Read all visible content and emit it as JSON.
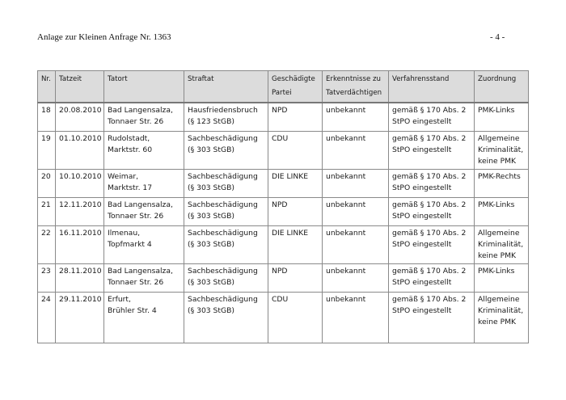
{
  "header": {
    "title": "Anlage zur Kleinen Anfrage Nr. 1363",
    "page": "- 4 -"
  },
  "table": {
    "columns": [
      "Nr.",
      "Tatzeit",
      "Tatort",
      "Straftat",
      "Geschädigte\nPartei",
      "Erkenntnisse zu\nTatverdächtigen",
      "Verfahrensstand",
      "Zuordnung"
    ],
    "rows": [
      [
        "18",
        "20.08.2010",
        "Bad Langensalza,\nTonnaer Str. 26",
        "Hausfriedensbruch\n(§ 123 StGB)",
        "NPD",
        "unbekannt",
        "gemäß § 170 Abs. 2\nStPO eingestellt",
        "PMK-Links"
      ],
      [
        "19",
        "01.10.2010",
        "Rudolstadt,\nMarktstr. 60",
        "Sachbeschädigung\n(§ 303 StGB)",
        "CDU",
        "unbekannt",
        "gemäß § 170 Abs. 2\nStPO eingestellt",
        "Allgemeine\nKriminalität,\nkeine PMK"
      ],
      [
        "20",
        "10.10.2010",
        "Weimar,\nMarktstr. 17",
        "Sachbeschädigung\n(§ 303 StGB)",
        "DIE LINKE",
        "unbekannt",
        "gemäß § 170 Abs. 2\nStPO eingestellt",
        "PMK-Rechts"
      ],
      [
        "21",
        "12.11.2010",
        "Bad Langensalza,\nTonnaer Str. 26",
        "Sachbeschädigung\n(§ 303 StGB)",
        "NPD",
        "unbekannt",
        "gemäß § 170 Abs. 2\nStPO eingestellt",
        "PMK-Links"
      ],
      [
        "22",
        "16.11.2010",
        "Ilmenau,\nTopfmarkt 4",
        "Sachbeschädigung\n(§ 303 StGB)",
        "DIE LINKE",
        "unbekannt",
        "gemäß § 170 Abs. 2\nStPO eingestellt",
        "Allgemeine\nKriminalität,\nkeine PMK"
      ],
      [
        "23",
        "28.11.2010",
        "Bad Langensalza,\nTonnaer Str. 26",
        "Sachbeschädigung\n(§ 303 StGB)",
        "NPD",
        "unbekannt",
        "gemäß § 170 Abs. 2\nStPO eingestellt",
        "PMK-Links"
      ],
      [
        "24",
        "29.11.2010",
        "Erfurt,\nBrühler Str. 4",
        "Sachbeschädigung\n(§ 303 StGB)",
        "CDU",
        "unbekannt",
        "gemäß § 170 Abs. 2\nStPO eingestellt",
        "Allgemeine\nKriminalität,\nkeine PMK"
      ]
    ]
  }
}
